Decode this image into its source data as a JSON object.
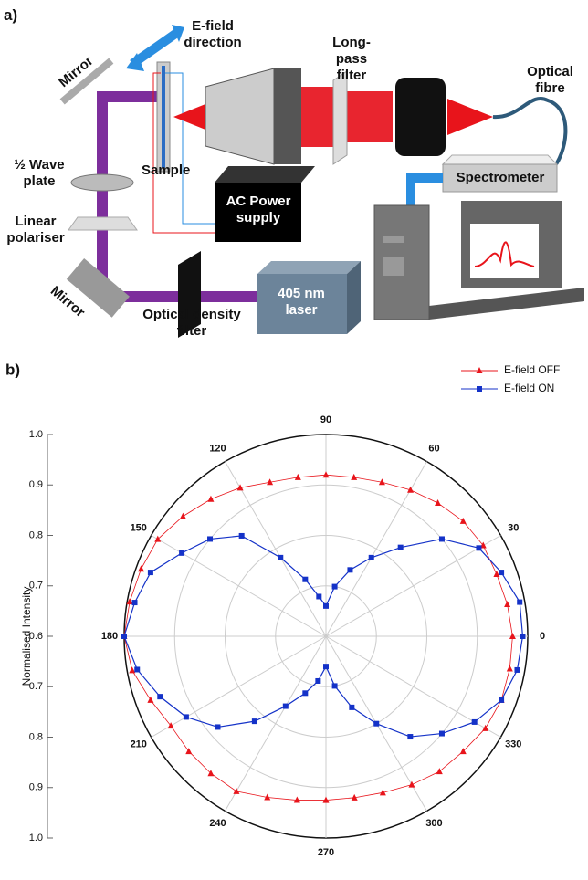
{
  "figure_a": {
    "panel": "a)",
    "labels": {
      "efield": "E-field direction",
      "longpass": "Long-pass filter",
      "fibre": "Optical fibre",
      "mirror_top": "Mirror",
      "sample": "Sample",
      "waveplate": "½ Wave plate",
      "power": "AC Power supply",
      "spectrometer": "Spectrometer",
      "polariser": "Linear polariser",
      "mirror_bottom": "Mirror",
      "laser": "405 nm laser",
      "odfilter": "Optical density filter"
    }
  },
  "chart_data": {
    "type": "polar",
    "panel": "b)",
    "ylabel": "Normalised Intensity",
    "x": [
      0,
      10,
      20,
      30,
      40,
      50,
      60,
      70,
      80,
      90,
      100,
      110,
      120,
      130,
      140,
      150,
      160,
      170,
      180,
      190,
      200,
      210,
      220,
      230,
      240,
      250,
      260,
      270,
      280,
      290,
      300,
      310,
      320,
      330,
      340,
      350
    ],
    "xticks": [
      0,
      30,
      60,
      90,
      120,
      150,
      180,
      210,
      240,
      270,
      300,
      330
    ],
    "ylim": [
      0.6,
      1.0
    ],
    "yticks": [
      0.6,
      0.7,
      0.8,
      0.9,
      {
        "value": 1.0,
        "label": "1.0"
      }
    ],
    "grid": true,
    "legend": "top-right",
    "series": [
      {
        "name": "E-field OFF",
        "color": "#e8141b",
        "marker": "triangle",
        "values": [
          0.97,
          0.965,
          0.96,
          0.96,
          0.955,
          0.945,
          0.935,
          0.925,
          0.92,
          0.92,
          0.92,
          0.925,
          0.94,
          0.955,
          0.97,
          0.985,
          0.99,
          0.995,
          1.0,
          0.99,
          0.97,
          0.955,
          0.955,
          0.955,
          0.955,
          0.94,
          0.93,
          0.925,
          0.925,
          0.93,
          0.94,
          0.95,
          0.955,
          0.965,
          0.97,
          0.97
        ]
      },
      {
        "name": "E-field ON",
        "color": "#1432c8",
        "marker": "square",
        "values": [
          0.99,
          0.99,
          0.97,
          0.95,
          0.9,
          0.83,
          0.78,
          0.74,
          0.7,
          0.66,
          0.68,
          0.72,
          0.78,
          0.86,
          0.9,
          0.93,
          0.97,
          0.985,
          1.0,
          0.98,
          0.95,
          0.92,
          0.88,
          0.82,
          0.76,
          0.72,
          0.69,
          0.66,
          0.7,
          0.75,
          0.8,
          0.86,
          0.9,
          0.94,
          0.97,
          0.985
        ]
      }
    ]
  }
}
